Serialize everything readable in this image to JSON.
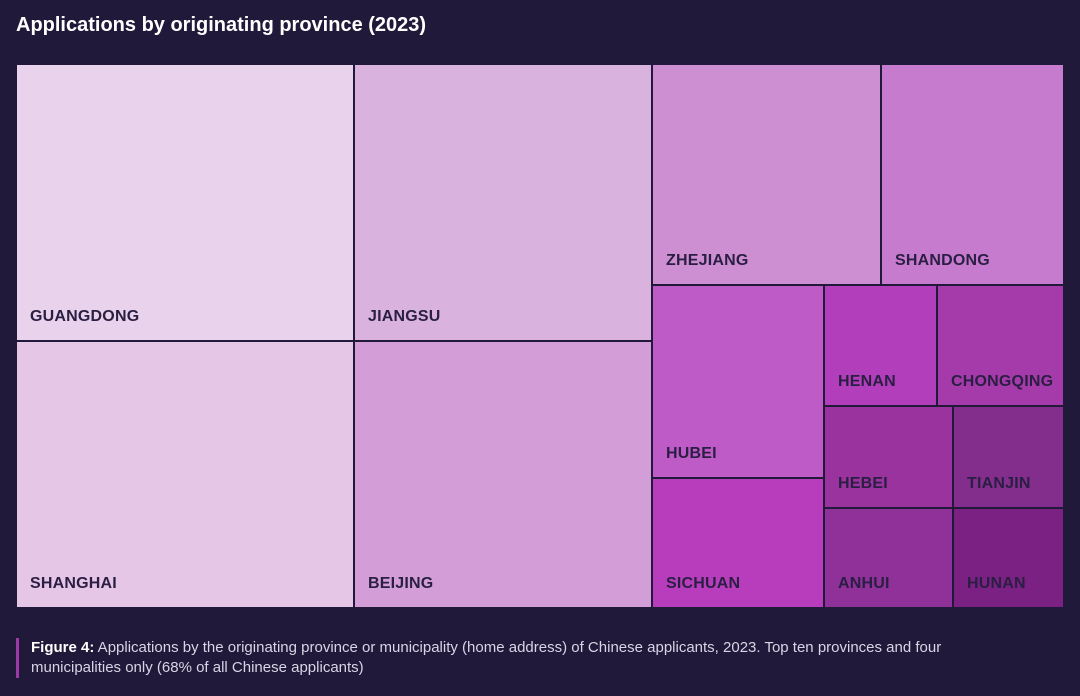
{
  "chart_data": {
    "type": "treemap",
    "title": "Applications by originating province (2023)",
    "tiles": [
      {
        "name": "GUANGDONG",
        "color": "#e9d2eb"
      },
      {
        "name": "SHANGHAI",
        "color": "#e6c6e6"
      },
      {
        "name": "JIANGSU",
        "color": "#d9b2dd"
      },
      {
        "name": "BEIJING",
        "color": "#d39ed7"
      },
      {
        "name": "ZHEJIANG",
        "color": "#cd8ed2"
      },
      {
        "name": "SHANDONG",
        "color": "#c77bce"
      },
      {
        "name": "HUBEI",
        "color": "#bf5bc6"
      },
      {
        "name": "SICHUAN",
        "color": "#b83dbd"
      },
      {
        "name": "HENAN",
        "color": "#b23ebb"
      },
      {
        "name": "CHONGQING",
        "color": "#a53aaa"
      },
      {
        "name": "HEBEI",
        "color": "#9a339e"
      },
      {
        "name": "TIANJIN",
        "color": "#832d8c"
      },
      {
        "name": "ANHUI",
        "color": "#8f3199"
      },
      {
        "name": "HUNAN",
        "color": "#7b2183"
      }
    ]
  },
  "caption": {
    "label": "Figure 4:",
    "text": " Applications by the originating province or municipality (home address) of Chinese applicants, 2023. Top ten provinces and four municipalities only (68% of all Chinese applicants)"
  }
}
